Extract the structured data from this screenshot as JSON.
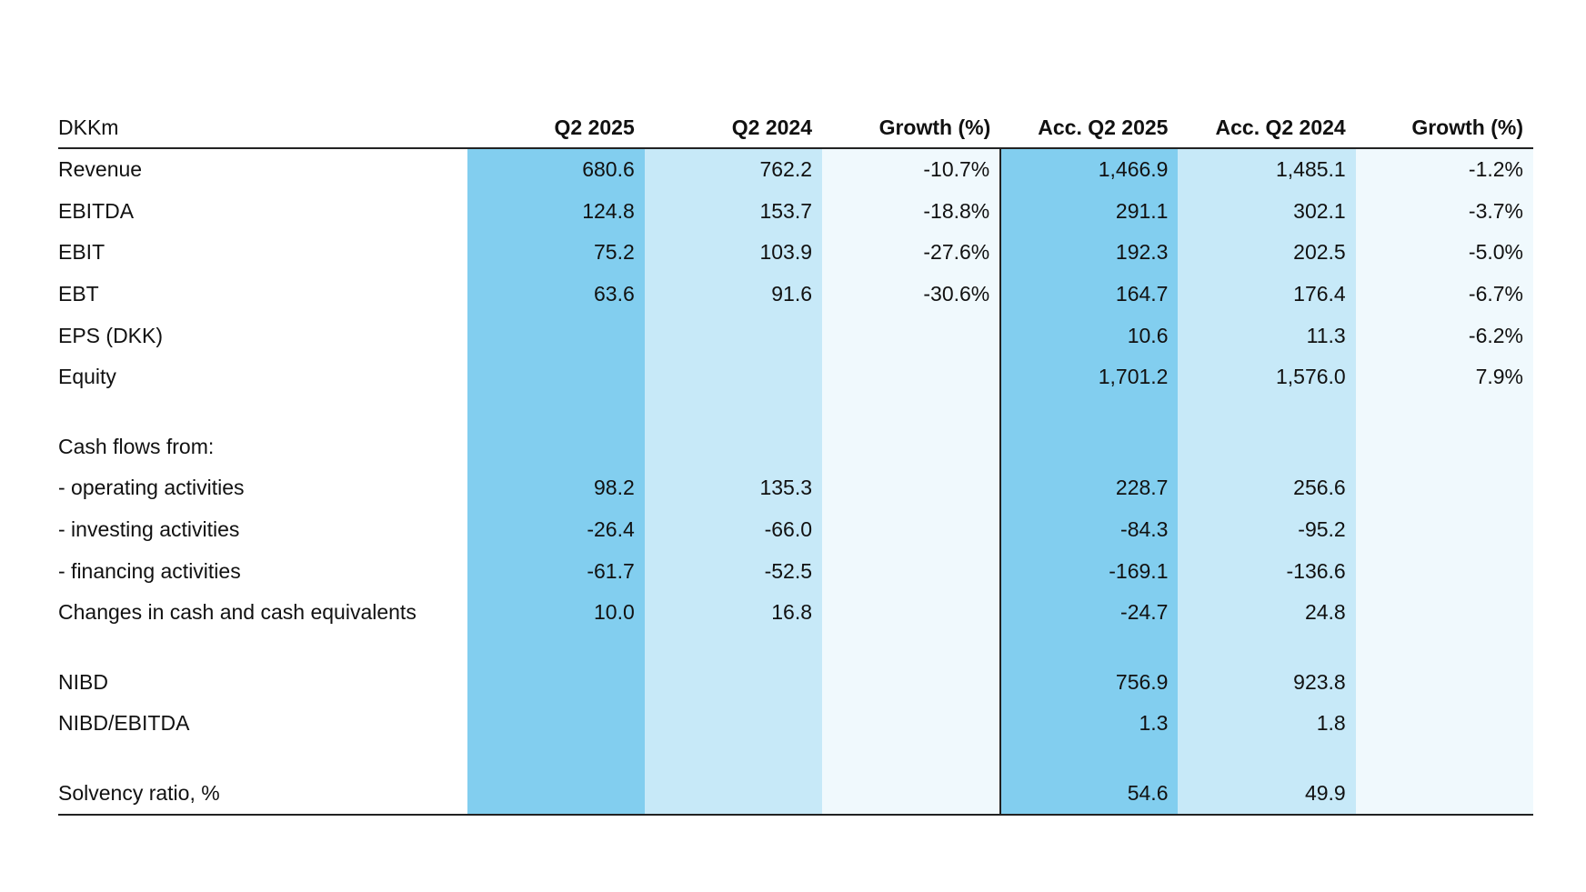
{
  "table": {
    "headers": [
      "DKKm",
      "Q2 2025",
      "Q2 2024",
      "Growth (%)",
      "Acc. Q2 2025",
      "Acc. Q2 2024",
      "Growth (%)"
    ],
    "rows": [
      {
        "label": "Revenue",
        "values": [
          "680.6",
          "762.2",
          "-10.7%",
          "1,466.9",
          "1,485.1",
          "-1.2%"
        ]
      },
      {
        "label": "EBITDA",
        "values": [
          "124.8",
          "153.7",
          "-18.8%",
          "291.1",
          "302.1",
          "-3.7%"
        ]
      },
      {
        "label": "EBIT",
        "values": [
          "75.2",
          "103.9",
          "-27.6%",
          "192.3",
          "202.5",
          "-5.0%"
        ]
      },
      {
        "label": "EBT",
        "values": [
          "63.6",
          "91.6",
          "-30.6%",
          "164.7",
          "176.4",
          "-6.7%"
        ]
      },
      {
        "label": "EPS (DKK)",
        "values": [
          "",
          "",
          "",
          "10.6",
          "11.3",
          "-6.2%"
        ]
      },
      {
        "label": "Equity",
        "values": [
          "",
          "",
          "",
          "1,701.2",
          "1,576.0",
          "7.9%"
        ]
      },
      {
        "label": "",
        "values": [
          "",
          "",
          "",
          "",
          "",
          ""
        ],
        "spacer": true
      },
      {
        "label": "Cash flows from:",
        "values": [
          "",
          "",
          "",
          "",
          "",
          ""
        ]
      },
      {
        "label": "- operating activities",
        "values": [
          "98.2",
          "135.3",
          "",
          "228.7",
          "256.6",
          ""
        ]
      },
      {
        "label": "- investing activities",
        "values": [
          "-26.4",
          "-66.0",
          "",
          "-84.3",
          "-95.2",
          ""
        ]
      },
      {
        "label": "- financing activities",
        "values": [
          "-61.7",
          "-52.5",
          "",
          "-169.1",
          "-136.6",
          ""
        ]
      },
      {
        "label": "Changes in cash and cash equivalents",
        "values": [
          "10.0",
          "16.8",
          "",
          "-24.7",
          "24.8",
          ""
        ]
      },
      {
        "label": "",
        "values": [
          "",
          "",
          "",
          "",
          "",
          ""
        ],
        "spacer": true
      },
      {
        "label": "NIBD",
        "values": [
          "",
          "",
          "",
          "756.9",
          "923.8",
          ""
        ]
      },
      {
        "label": "NIBD/EBITDA",
        "values": [
          "",
          "",
          "",
          "1.3",
          "1.8",
          ""
        ]
      },
      {
        "label": "",
        "values": [
          "",
          "",
          "",
          "",
          "",
          ""
        ],
        "spacer": true
      },
      {
        "label": "Solvency ratio, %",
        "values": [
          "",
          "",
          "",
          "54.6",
          "49.9",
          ""
        ]
      }
    ]
  }
}
